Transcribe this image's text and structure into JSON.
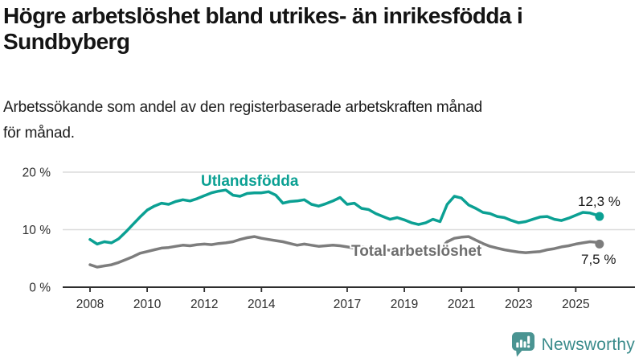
{
  "header": {
    "title": "Högre arbetslöshet bland utrikes- än inrikesfödda i\nSundbyberg",
    "subtitle": "Arbetssökande som andel av den registerbaserade arbetskraften månad\nför månad."
  },
  "chart_data": {
    "type": "line",
    "x_axis": {
      "tick_years": [
        2008,
        2010,
        2012,
        2014,
        2017,
        2019,
        2021,
        2023,
        2025
      ],
      "range": [
        2008,
        2025.92
      ]
    },
    "y_axis": {
      "ticks": [
        {
          "value": 0,
          "label": "0 %"
        },
        {
          "value": 10,
          "label": "10 %"
        },
        {
          "value": 20,
          "label": "20 %"
        }
      ],
      "range": [
        0,
        21
      ],
      "grid": true
    },
    "x": [
      2008.0,
      2008.25,
      2008.5,
      2008.75,
      2009.0,
      2009.25,
      2009.5,
      2009.75,
      2010.0,
      2010.25,
      2010.5,
      2010.75,
      2011.0,
      2011.25,
      2011.5,
      2011.75,
      2012.0,
      2012.25,
      2012.5,
      2012.75,
      2013.0,
      2013.25,
      2013.5,
      2013.75,
      2014.0,
      2014.25,
      2014.5,
      2014.75,
      2015.0,
      2015.25,
      2015.5,
      2015.75,
      2016.0,
      2016.25,
      2016.5,
      2016.75,
      2017.0,
      2017.25,
      2017.5,
      2017.75,
      2018.0,
      2018.25,
      2018.5,
      2018.75,
      2019.0,
      2019.25,
      2019.5,
      2019.75,
      2020.0,
      2020.25,
      2020.5,
      2020.75,
      2021.0,
      2021.25,
      2021.5,
      2021.75,
      2022.0,
      2022.25,
      2022.5,
      2022.75,
      2023.0,
      2023.25,
      2023.5,
      2023.75,
      2024.0,
      2024.25,
      2024.5,
      2024.75,
      2025.0,
      2025.25,
      2025.5,
      2025.75,
      2025.83
    ],
    "series": [
      {
        "name": "Utlandsfödda",
        "color": "#0ba093",
        "end_label": "12,3 %",
        "end_value": 12.3,
        "values": [
          8.3,
          7.5,
          7.9,
          7.7,
          8.4,
          9.6,
          10.9,
          12.2,
          13.4,
          14.1,
          14.6,
          14.4,
          14.9,
          15.2,
          15.0,
          15.4,
          15.9,
          16.4,
          16.7,
          16.9,
          16.0,
          15.8,
          16.3,
          16.4,
          16.4,
          16.6,
          16.0,
          14.6,
          14.9,
          15.0,
          15.2,
          14.4,
          14.1,
          14.5,
          15.0,
          15.6,
          14.4,
          14.6,
          13.7,
          13.5,
          12.8,
          12.3,
          11.8,
          12.1,
          11.7,
          11.2,
          10.9,
          11.2,
          11.8,
          11.4,
          14.4,
          15.8,
          15.5,
          14.3,
          13.7,
          13.0,
          12.8,
          12.3,
          12.1,
          11.6,
          11.2,
          11.4,
          11.8,
          12.2,
          12.3,
          11.8,
          11.6,
          12.0,
          12.5,
          13.0,
          12.9,
          12.5,
          12.3
        ]
      },
      {
        "name": "Total arbetslöshet",
        "color": "#7d7d7d",
        "end_label": "7,5 %",
        "end_value": 7.5,
        "values": [
          3.9,
          3.5,
          3.7,
          3.9,
          4.3,
          4.8,
          5.3,
          5.9,
          6.2,
          6.5,
          6.8,
          6.9,
          7.1,
          7.3,
          7.2,
          7.4,
          7.5,
          7.4,
          7.6,
          7.7,
          7.9,
          8.3,
          8.6,
          8.8,
          8.5,
          8.3,
          8.1,
          7.9,
          7.6,
          7.3,
          7.5,
          7.3,
          7.1,
          7.2,
          7.3,
          7.2,
          7.0,
          6.8,
          7.0,
          6.9,
          6.8,
          6.6,
          6.4,
          6.3,
          6.2,
          6.1,
          6.2,
          6.0,
          6.1,
          6.6,
          7.9,
          8.5,
          8.7,
          8.8,
          8.2,
          7.6,
          7.1,
          6.8,
          6.5,
          6.3,
          6.1,
          6.0,
          6.1,
          6.2,
          6.5,
          6.7,
          7.0,
          7.2,
          7.5,
          7.7,
          7.9,
          7.8,
          7.5
        ]
      }
    ],
    "legend_position": "inline-labels"
  },
  "colors": {
    "accent_teal": "#0ba093",
    "series_gray": "#7d7d7d",
    "grid": "#dcdcdc",
    "axis": "#2e2e2e",
    "tick_text": "#2e2e2e",
    "label_gray": "#6e6e6e",
    "logo_teal": "#4a9492",
    "logo_text_teal": "#3a8b8b"
  },
  "branding": {
    "logo_text": "Newsworthy",
    "logo_icon": "bar-chart-speech-bubble-icon"
  }
}
